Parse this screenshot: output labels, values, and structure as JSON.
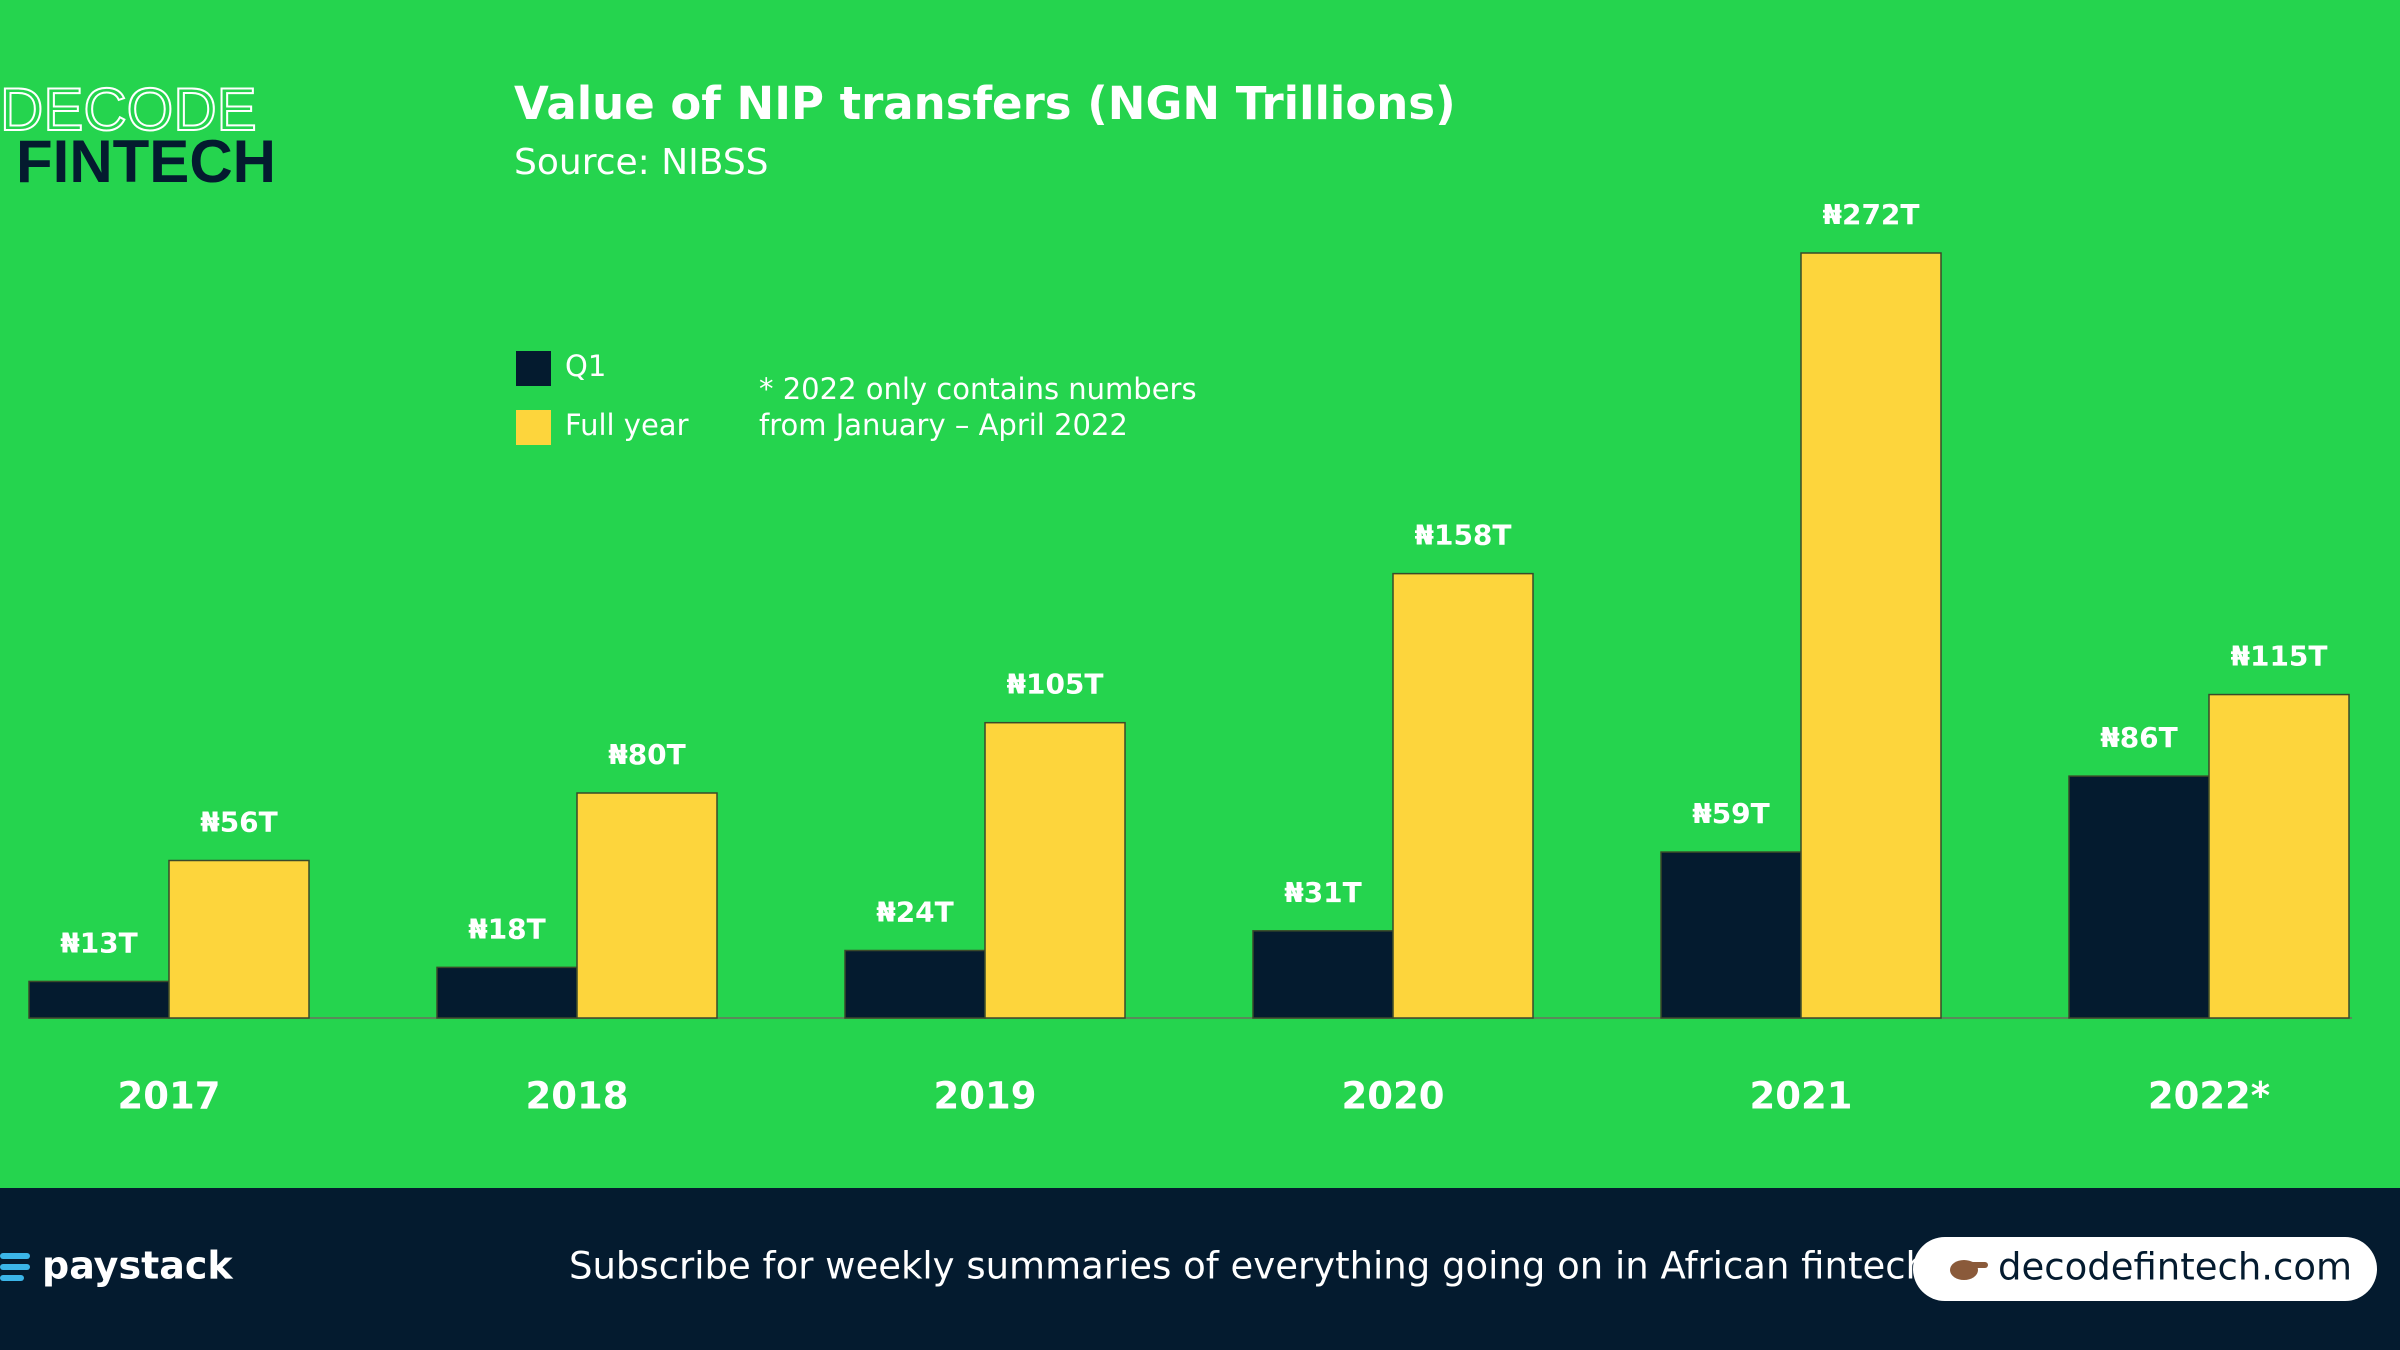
{
  "chart_data": {
    "type": "bar",
    "title": "Value of NIP transfers (NGN Trillions)",
    "subtitle": "Source: NIBSS",
    "note": [
      "* 2022 only contains numbers",
      "from January – April 2022"
    ],
    "categories": [
      "2017",
      "2018",
      "2019",
      "2020",
      "2021",
      "2022*"
    ],
    "series": [
      {
        "name": "Q1",
        "color": "#041b2f",
        "values": [
          13,
          18,
          24,
          31,
          59,
          86
        ],
        "value_labels": [
          "₦13T",
          "₦18T",
          "₦24T",
          "₦31T",
          "₦59T",
          "₦86T"
        ]
      },
      {
        "name": "Full year",
        "color": "#fdd53c",
        "values": [
          56,
          80,
          105,
          158,
          272,
          115
        ],
        "value_labels": [
          "₦56T",
          "₦80T",
          "₦105T",
          "₦158T",
          "₦272T",
          "₦115T"
        ]
      }
    ]
  },
  "branding": {
    "logo_top": "DECODE",
    "logo_bottom": "FINTECH",
    "sponsor": "paystack",
    "footer_text": "Subscribe for weekly summaries of everything going on in African fintech",
    "url": "decodefintech.com"
  }
}
